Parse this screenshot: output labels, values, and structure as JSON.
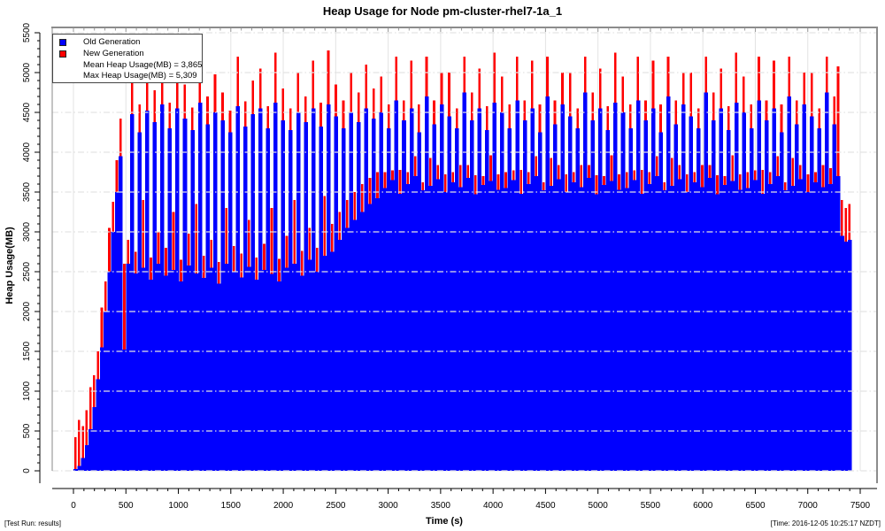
{
  "footer": {
    "left": "[Test Run: results]",
    "right": "[Time: 2016-12-05 10:25:17 NZDT]"
  },
  "chart_data": {
    "type": "area",
    "title": "Heap Usage for Node pm-cluster-rhel7-1a_1",
    "xlabel": "Time (s)",
    "ylabel": "Heap Usage(MB)",
    "xlim": [
      0,
      7500
    ],
    "ylim": [
      0,
      5500
    ],
    "grid": true,
    "legend_position": "top-left",
    "x_ticks": [
      0,
      500,
      1000,
      1500,
      2000,
      2500,
      3000,
      3500,
      4000,
      4500,
      5000,
      5500,
      6000,
      6500,
      7000,
      7500
    ],
    "y_ticks": [
      0,
      500,
      1000,
      1500,
      2000,
      2500,
      3000,
      3500,
      4000,
      4500,
      5000,
      5500
    ],
    "series": [
      {
        "name": "Old Generation",
        "color": "#0000ff"
      },
      {
        "name": "New Generation",
        "color": "#ff0000"
      }
    ],
    "stats": {
      "mean_label": "Mean Heap Usage(MB) = 3,865",
      "max_label": "Max Heap Usage(MB) = 5,309",
      "mean_mb": 3865,
      "max_mb": 5309
    },
    "samples": {
      "t_start": 0,
      "t_step": 36,
      "old_generation_mb": [
        20,
        60,
        160,
        320,
        520,
        800,
        1150,
        1550,
        2000,
        2500,
        3000,
        3500,
        3950,
        1520,
        2600,
        4480,
        2480,
        4250,
        2550,
        4520,
        2400,
        4380,
        2600,
        4600,
        2450,
        4300,
        2520,
        4550,
        2380,
        4420,
        2580,
        4280,
        2480,
        4620,
        2420,
        4350,
        2550,
        4500,
        2350,
        4400,
        2600,
        4250,
        2500,
        4580,
        2430,
        4320,
        2560,
        4480,
        2400,
        4550,
        2520,
        4300,
        2470,
        4620,
        2380,
        4400,
        2550,
        4280,
        2600,
        4500,
        2450,
        4380,
        2650,
        4550,
        2500,
        4320,
        2700,
        4600,
        2750,
        4450,
        2900,
        4300,
        3050,
        4500,
        3150,
        4380,
        3250,
        4550,
        3350,
        4420,
        3420,
        4500,
        3550,
        4300,
        3650,
        4650,
        3480,
        4400,
        3600,
        4550,
        3700,
        4250,
        3520,
        4700,
        3580,
        4350,
        3660,
        4600,
        3500,
        4450,
        3620,
        4300,
        3560,
        4750,
        3680,
        4400,
        3470,
        4550,
        3590,
        4280,
        3640,
        4620,
        3530,
        4500,
        3550,
        4300,
        3650,
        4650,
        3480,
        4400,
        3600,
        4550,
        3700,
        4250,
        3520,
        4700,
        3580,
        4350,
        3660,
        4600,
        3500,
        4450,
        3620,
        4300,
        3560,
        4750,
        3680,
        4400,
        3470,
        4550,
        3590,
        4280,
        3640,
        4620,
        3530,
        4500,
        3550,
        4300,
        3650,
        4650,
        3480,
        4400,
        3600,
        4550,
        3700,
        4250,
        3520,
        4700,
        3580,
        4350,
        3660,
        4600,
        3500,
        4450,
        3620,
        4300,
        3560,
        4750,
        3680,
        4400,
        3470,
        4550,
        3590,
        4280,
        3640,
        4620,
        3530,
        4500,
        3550,
        4300,
        3650,
        4650,
        3480,
        4400,
        3600,
        4550,
        3700,
        4250,
        3520,
        4700,
        3580,
        4350,
        3660,
        4600,
        3500,
        4450,
        3620,
        4300,
        3560,
        4750,
        3600,
        4350,
        3700,
        2950,
        2880,
        2900
      ],
      "total_heap_mb": [
        420,
        640,
        560,
        760,
        1050,
        1200,
        1500,
        2050,
        2380,
        3050,
        3380,
        3900,
        4420,
        2600,
        2900,
        4900,
        2750,
        4600,
        3400,
        5050,
        2680,
        4780,
        3000,
        5150,
        2800,
        4620,
        3250,
        5309,
        2650,
        4850,
        2980,
        4560,
        3350,
        5100,
        2700,
        4700,
        2900,
        4980,
        2620,
        4750,
        3300,
        4520,
        2820,
        5200,
        2730,
        4640,
        3150,
        4900,
        2680,
        5050,
        2850,
        4580,
        3300,
        5250,
        2660,
        4800,
        2950,
        4550,
        3400,
        5000,
        2760,
        4700,
        3050,
        5150,
        2800,
        4620,
        3450,
        5280,
        3100,
        4850,
        3250,
        4650,
        3400,
        5000,
        3500,
        4750,
        3600,
        5100,
        3680,
        4800,
        3750,
        4950,
        3750,
        4600,
        3770,
        5200,
        3780,
        4650,
        3750,
        5150,
        3950,
        4600,
        3620,
        5200,
        3930,
        4650,
        3840,
        5000,
        3720,
        5000,
        3750,
        4550,
        3840,
        5200,
        3840,
        4750,
        3710,
        5050,
        3700,
        4580,
        3960,
        5250,
        3720,
        4950,
        3750,
        4600,
        3770,
        5200,
        3780,
        4650,
        3750,
        5150,
        3950,
        4600,
        3620,
        5200,
        3930,
        4650,
        3840,
        5000,
        3720,
        5000,
        3750,
        4550,
        3840,
        5200,
        3840,
        4750,
        3710,
        5050,
        3700,
        4580,
        3960,
        5250,
        3720,
        4950,
        3750,
        4600,
        3770,
        5200,
        3780,
        4650,
        3750,
        5150,
        3950,
        4600,
        3620,
        5200,
        3930,
        4650,
        3840,
        5000,
        3720,
        5000,
        3750,
        4550,
        3840,
        5200,
        3840,
        4750,
        3710,
        5050,
        3700,
        4580,
        3960,
        5250,
        3720,
        4950,
        3750,
        4600,
        3770,
        5200,
        3780,
        4650,
        3750,
        5150,
        3950,
        4600,
        3620,
        5200,
        3930,
        4650,
        3840,
        5000,
        3720,
        5000,
        3750,
        4550,
        3840,
        5200,
        3800,
        4700,
        5080,
        3400,
        3300,
        3350
      ]
    }
  }
}
